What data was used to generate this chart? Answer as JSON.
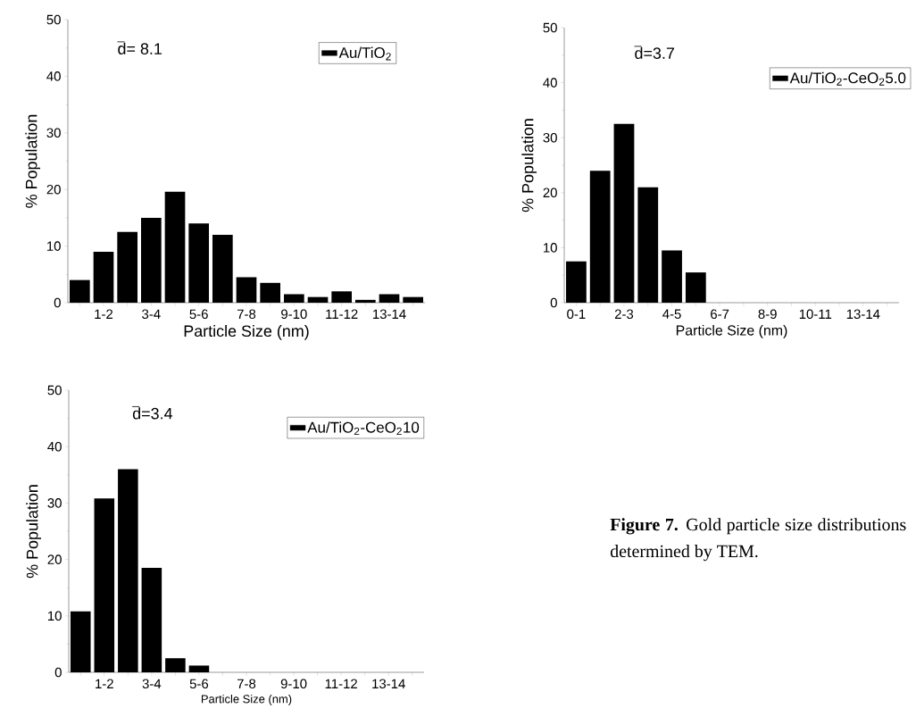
{
  "chart_data": [
    {
      "type": "bar",
      "categories": [
        null,
        "1-2",
        null,
        "3-4",
        null,
        "5-6",
        null,
        "7-8",
        null,
        "9-10",
        null,
        "11-12",
        null,
        "13-14",
        null
      ],
      "series": [
        {
          "name": "Au/TiO$_{2}$",
          "color": "#000000",
          "values": [
            4,
            9,
            12.5,
            15,
            19.6,
            14,
            12,
            4.5,
            3.5,
            1.5,
            1,
            2,
            0.5,
            1.5,
            1
          ]
        }
      ],
      "xlabel": "Particle Size (nm)",
      "ylabel": "% Population",
      "ylim": [
        0,
        50
      ],
      "yticks": [
        0,
        10,
        20,
        30,
        40,
        50
      ],
      "legend": "top right",
      "annotations": [
        "d= 8.1"
      ]
    },
    {
      "type": "bar",
      "categories": [
        "0-1",
        null,
        "2-3",
        null,
        "4-5",
        null,
        "6-7",
        null,
        "8-9",
        null,
        "10-11",
        null,
        "13-14",
        null
      ],
      "series": [
        {
          "name": "Au/TiO$_{2}$-CeO$_{2}$5.0",
          "color": "#000000",
          "values": [
            7.5,
            24,
            32.5,
            21,
            9.5,
            5.5,
            0,
            0,
            0,
            0,
            0,
            0,
            0,
            0
          ]
        }
      ],
      "xlabel": "Particle Size (nm)",
      "ylabel": "% Population",
      "ylim": [
        0,
        50
      ],
      "yticks": [
        0,
        10,
        20,
        30,
        40,
        50
      ],
      "legend": "top right",
      "annotations": [
        "d=3.7"
      ]
    },
    {
      "type": "bar",
      "categories": [
        null,
        "1-2",
        null,
        "3-4",
        null,
        "5-6",
        null,
        "7-8",
        null,
        "9-10",
        null,
        "11-12",
        null,
        "13-14",
        null
      ],
      "series": [
        {
          "name": "Au/TiO$_{2}$-CeO$_{2}$10",
          "color": "#000000",
          "values": [
            10.8,
            30.8,
            36,
            18.5,
            2.5,
            1.2,
            0,
            0,
            0,
            0,
            0,
            0,
            0,
            0,
            0
          ]
        }
      ],
      "xlabel": "Particle Size (nm)",
      "ylabel": "% Population",
      "ylim": [
        0,
        50
      ],
      "yticks": [
        0,
        10,
        20,
        30,
        40,
        50
      ],
      "legend": "top right",
      "annotations": [
        "d=3.4"
      ]
    },
    {
      "type": "other",
      "annotations": [
        "**Figure 7.** Gold particle size distributions determined by TEM."
      ]
    }
  ]
}
